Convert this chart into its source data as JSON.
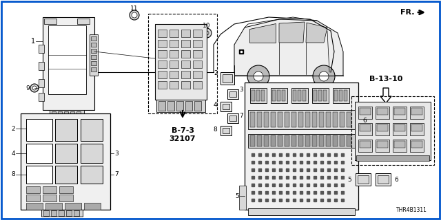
{
  "bg_color": "#ffffff",
  "border_color": "#0055cc",
  "line_color": "#000000",
  "gray_fill": "#d8d8d8",
  "dark_gray": "#888888",
  "light_gray": "#eeeeee",
  "part_number_text": "THR4B1311",
  "ref_code": "B-7-3\n32107",
  "ref_code2": "B-13-10",
  "fr_label": "FR.",
  "figsize": [
    6.4,
    3.2
  ],
  "dpi": 100
}
